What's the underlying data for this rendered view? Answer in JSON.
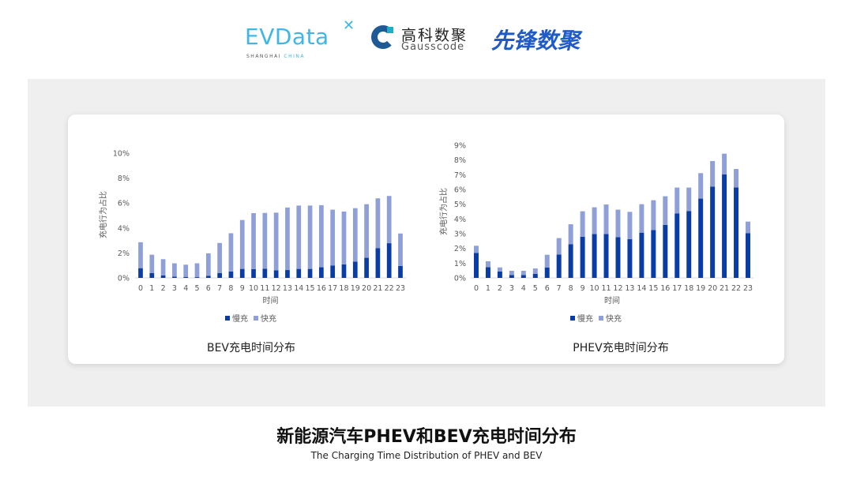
{
  "logos": {
    "evdata": {
      "text": "EVData",
      "sub_a": "SHANGHAI",
      "sub_b": "CHINA"
    },
    "gausscode": {
      "cn": "高科数聚",
      "en": "Gausscode"
    },
    "xianfeng": {
      "text": "先锋数聚"
    }
  },
  "colors": {
    "slow": "#0a3ca8",
    "fast": "#8f9fd8",
    "panel": "#efefef",
    "axis_text": "#595959"
  },
  "caption": {
    "title": "新能源汽车PHEV和BEV充电时间分布",
    "subtitle": "The Charging Time Distribution of PHEV and BEV"
  },
  "chart_data": [
    {
      "type": "bar",
      "stacked": true,
      "title": "BEV充电时间分布",
      "xlabel": "时间",
      "ylabel": "充电行为占比",
      "ylim": [
        0,
        10
      ],
      "yticks": [
        "0%",
        "2%",
        "4%",
        "6%",
        "8%",
        "10%"
      ],
      "ytick_values": [
        0,
        2,
        4,
        6,
        8,
        10
      ],
      "grid": false,
      "legend": "bottom",
      "categories": [
        "0",
        "1",
        "2",
        "3",
        "4",
        "5",
        "6",
        "7",
        "8",
        "9",
        "10",
        "11",
        "12",
        "13",
        "14",
        "15",
        "16",
        "17",
        "18",
        "19",
        "20",
        "21",
        "22",
        "23"
      ],
      "series": [
        {
          "name": "慢充",
          "values": [
            0.78,
            0.38,
            0.19,
            0.1,
            0.08,
            0.06,
            0.17,
            0.38,
            0.51,
            0.72,
            0.7,
            0.74,
            0.61,
            0.63,
            0.72,
            0.72,
            0.85,
            1.0,
            1.08,
            1.31,
            1.61,
            2.39,
            2.78,
            0.95
          ]
        },
        {
          "name": "快充",
          "values": [
            2.08,
            1.48,
            1.31,
            1.07,
            0.98,
            1.11,
            1.8,
            2.42,
            3.07,
            3.92,
            4.49,
            4.47,
            4.62,
            5.01,
            5.08,
            5.08,
            4.98,
            4.47,
            4.24,
            4.28,
            4.3,
            3.99,
            3.79,
            2.61
          ]
        }
      ]
    },
    {
      "type": "bar",
      "stacked": true,
      "title": "PHEV充电时间分布",
      "xlabel": "时间",
      "ylabel": "充电行为占比",
      "ylim": [
        0,
        9
      ],
      "yticks": [
        "0%",
        "1%",
        "2%",
        "3%",
        "4%",
        "5%",
        "6%",
        "7%",
        "8%",
        "9%"
      ],
      "ytick_values": [
        0,
        1,
        2,
        3,
        4,
        5,
        6,
        7,
        8,
        9
      ],
      "grid": false,
      "legend": "bottom",
      "categories": [
        "0",
        "1",
        "2",
        "3",
        "4",
        "5",
        "6",
        "7",
        "8",
        "9",
        "10",
        "11",
        "12",
        "13",
        "14",
        "15",
        "16",
        "17",
        "18",
        "19",
        "20",
        "21",
        "22",
        "23"
      ],
      "series": [
        {
          "name": "慢充",
          "values": [
            1.7,
            0.73,
            0.43,
            0.2,
            0.2,
            0.27,
            0.71,
            1.59,
            2.29,
            2.79,
            2.98,
            2.98,
            2.77,
            2.63,
            3.07,
            3.25,
            3.59,
            4.38,
            4.54,
            5.38,
            6.2,
            7.02,
            6.14,
            3.04
          ]
        },
        {
          "name": "快充",
          "values": [
            0.48,
            0.4,
            0.28,
            0.28,
            0.28,
            0.37,
            0.86,
            1.11,
            1.35,
            1.73,
            1.81,
            2.0,
            1.86,
            1.85,
            1.93,
            2.02,
            1.95,
            1.75,
            1.59,
            1.73,
            1.73,
            1.41,
            1.25,
            0.78
          ]
        }
      ]
    }
  ]
}
